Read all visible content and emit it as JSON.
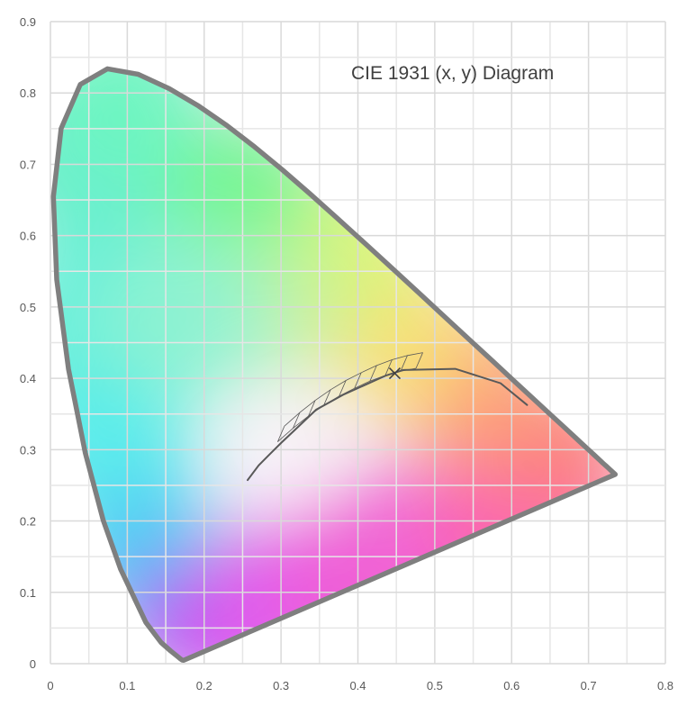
{
  "chart_data": {
    "type": "scatter",
    "title": "CIE 1931 (x, y) Diagram",
    "xlabel": "",
    "ylabel": "",
    "xlim": [
      0,
      0.8
    ],
    "ylim": [
      0,
      0.9
    ],
    "x_ticks": [
      "0",
      "0.1",
      "0.2",
      "0.3",
      "0.4",
      "0.5",
      "0.6",
      "0.7",
      "0.8"
    ],
    "y_ticks": [
      "0",
      "0.1",
      "0.2",
      "0.3",
      "0.4",
      "0.5",
      "0.6",
      "0.7",
      "0.8",
      "0.9"
    ],
    "grid": true,
    "colors": {
      "locus_stroke": "#7f7f7f",
      "grid": "#d9d9d9",
      "planckian_stroke": "#595959",
      "marker": "#404040"
    },
    "series": [
      {
        "role": "spectral-locus",
        "x": [
          0.1741,
          0.1738,
          0.1733,
          0.1726,
          0.1714,
          0.1689,
          0.1644,
          0.1566,
          0.144,
          0.1241,
          0.0913,
          0.0687,
          0.0454,
          0.0235,
          0.0082,
          0.0039,
          0.0139,
          0.0389,
          0.0743,
          0.1142,
          0.1547,
          0.1929,
          0.2296,
          0.2658,
          0.3016,
          0.3373,
          0.3731,
          0.4087,
          0.4441,
          0.4788,
          0.5125,
          0.5448,
          0.5752,
          0.6029,
          0.627,
          0.6482,
          0.6658,
          0.6801,
          0.6915,
          0.7006,
          0.7079,
          0.714,
          0.719,
          0.723,
          0.726,
          0.7283,
          0.7347,
          0.7347
        ],
        "y": [
          0.005,
          0.0049,
          0.0048,
          0.0048,
          0.0051,
          0.0069,
          0.0109,
          0.0177,
          0.0297,
          0.0578,
          0.1327,
          0.2007,
          0.295,
          0.4127,
          0.5384,
          0.6548,
          0.7502,
          0.812,
          0.8338,
          0.8262,
          0.8059,
          0.7816,
          0.7543,
          0.7243,
          0.6923,
          0.6589,
          0.6245,
          0.5896,
          0.5547,
          0.5202,
          0.4866,
          0.4544,
          0.4242,
          0.3965,
          0.3725,
          0.3514,
          0.334,
          0.3197,
          0.3083,
          0.2993,
          0.292,
          0.2859,
          0.2809,
          0.277,
          0.274,
          0.2717,
          0.2653,
          0.2653
        ]
      },
      {
        "role": "planckian-locus",
        "x": [
          0.2565,
          0.2709,
          0.285,
          0.3001,
          0.3221,
          0.3457,
          0.3805,
          0.4369,
          0.4589,
          0.5267,
          0.5857,
          0.6201
        ],
        "y": [
          0.2574,
          0.278,
          0.2932,
          0.3094,
          0.3318,
          0.3559,
          0.3768,
          0.4041,
          0.4116,
          0.4133,
          0.3931,
          0.3627
        ]
      },
      {
        "role": "ansi-quadrangles",
        "x": [
          0.3,
          0.32,
          0.34,
          0.36,
          0.38,
          0.4,
          0.42,
          0.44,
          0.46,
          0.48
        ],
        "y": [
          0.322,
          0.341,
          0.358,
          0.373,
          0.386,
          0.397,
          0.407,
          0.415,
          0.421,
          0.425
        ]
      },
      {
        "role": "marker",
        "x": [
          0.448
        ],
        "y": [
          0.407
        ]
      }
    ]
  }
}
